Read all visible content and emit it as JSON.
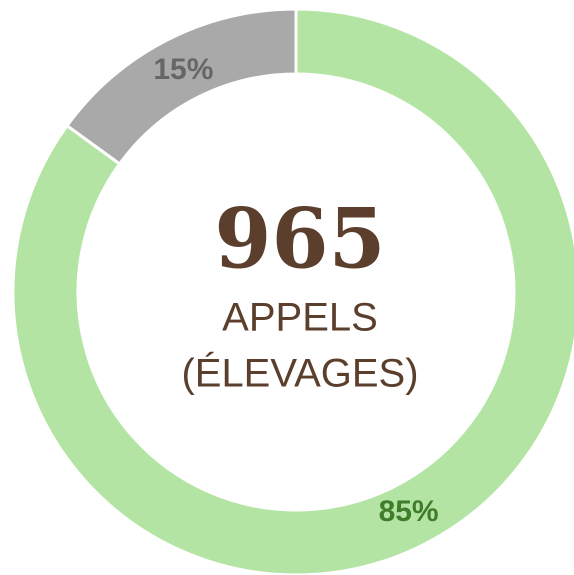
{
  "chart_data": {
    "type": "donut",
    "values": [
      85,
      15
    ],
    "value_labels": [
      "85%",
      "15%"
    ],
    "colors": [
      "#b3e4a3",
      "#a9a9a9"
    ],
    "label_colors": [
      "#3f7d2a",
      "#666666"
    ],
    "center_value": 965,
    "center_lines": [
      "APPELS",
      "(ÉLEVAGES)"
    ]
  }
}
